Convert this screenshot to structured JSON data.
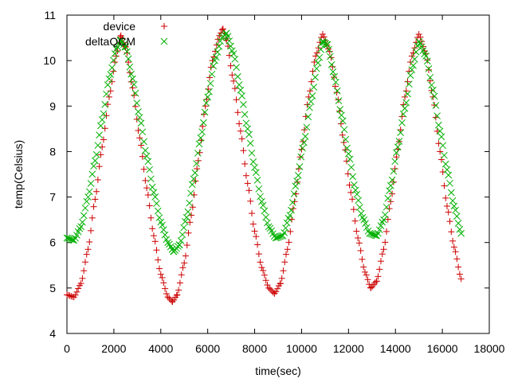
{
  "chart_data": {
    "type": "scatter",
    "title": "",
    "xlabel": "time(sec)",
    "ylabel": "temp(Celsius)",
    "xlim": [
      0,
      18000
    ],
    "ylim": [
      4,
      11
    ],
    "xticks": [
      0,
      2000,
      4000,
      6000,
      8000,
      10000,
      12000,
      14000,
      16000,
      18000
    ],
    "yticks": [
      4,
      5,
      6,
      7,
      8,
      9,
      10,
      11
    ],
    "xtick_labels": [
      "0",
      "2000",
      "4000",
      "6000",
      "8000",
      "10000",
      "12000",
      "14000",
      "16000",
      "18000"
    ],
    "ytick_labels": [
      "4",
      "5",
      "6",
      "7",
      "8",
      "9",
      "10",
      "11"
    ],
    "grid": false,
    "legend_position": "top-left",
    "x_range_observed": [
      0,
      16800
    ],
    "series": [
      {
        "name": "device",
        "marker": "plus",
        "color": "#cc0000",
        "x": [
          0,
          300,
          600,
          900,
          1200,
          1500,
          1800,
          2100,
          2300,
          2500,
          2800,
          3100,
          3400,
          3700,
          4000,
          4300,
          4500,
          4700,
          5000,
          5300,
          5600,
          5900,
          6200,
          6500,
          6650,
          6800,
          7100,
          7400,
          7700,
          8000,
          8300,
          8600,
          8850,
          9100,
          9400,
          9700,
          10000,
          10300,
          10600,
          10900,
          11200,
          11500,
          11800,
          12100,
          12400,
          12700,
          12950,
          13200,
          13500,
          13800,
          14100,
          14400,
          14700,
          15000,
          15300,
          15600,
          15900,
          16200,
          16500,
          16800
        ],
        "values": [
          4.85,
          4.8,
          5.1,
          5.85,
          6.95,
          8.1,
          9.2,
          10.1,
          10.55,
          10.3,
          9.4,
          8.3,
          7.2,
          6.15,
          5.3,
          4.8,
          4.7,
          4.85,
          5.55,
          6.6,
          7.8,
          9.0,
          10.0,
          10.55,
          10.7,
          10.45,
          9.55,
          8.45,
          7.3,
          6.25,
          5.45,
          5.0,
          4.88,
          5.1,
          5.85,
          6.9,
          8.05,
          9.2,
          10.1,
          10.58,
          10.2,
          9.3,
          8.2,
          7.1,
          6.1,
          5.35,
          5.0,
          5.15,
          5.85,
          6.9,
          8.05,
          9.2,
          10.1,
          10.58,
          10.15,
          9.2,
          8.0,
          6.8,
          5.9,
          5.2
        ]
      },
      {
        "name": "deltaQCM",
        "marker": "cross",
        "color": "#00b000",
        "x": [
          0,
          300,
          600,
          900,
          1200,
          1500,
          1800,
          2100,
          2300,
          2500,
          2800,
          3100,
          3400,
          3700,
          4000,
          4300,
          4550,
          4800,
          5100,
          5400,
          5700,
          6000,
          6300,
          6600,
          6800,
          7100,
          7400,
          7700,
          8000,
          8300,
          8600,
          8900,
          9200,
          9500,
          9800,
          10100,
          10400,
          10700,
          10900,
          11100,
          11400,
          11700,
          12000,
          12300,
          12600,
          12900,
          13200,
          13500,
          13800,
          14100,
          14400,
          14700,
          15000,
          15300,
          15600,
          15900,
          16200,
          16500,
          16800
        ],
        "values": [
          6.1,
          6.05,
          6.35,
          7.0,
          7.8,
          8.7,
          9.6,
          10.25,
          10.45,
          10.3,
          9.6,
          8.75,
          7.9,
          7.1,
          6.45,
          6.0,
          5.8,
          5.95,
          6.55,
          7.4,
          8.3,
          9.2,
          10.0,
          10.5,
          10.6,
          10.15,
          9.35,
          8.5,
          7.65,
          6.9,
          6.35,
          6.1,
          6.15,
          6.6,
          7.35,
          8.2,
          9.1,
          9.95,
          10.42,
          10.35,
          9.65,
          8.8,
          7.95,
          7.15,
          6.55,
          6.2,
          6.15,
          6.5,
          7.25,
          8.1,
          8.95,
          9.8,
          10.42,
          10.1,
          9.35,
          8.45,
          7.6,
          6.8,
          6.2
        ]
      }
    ]
  }
}
